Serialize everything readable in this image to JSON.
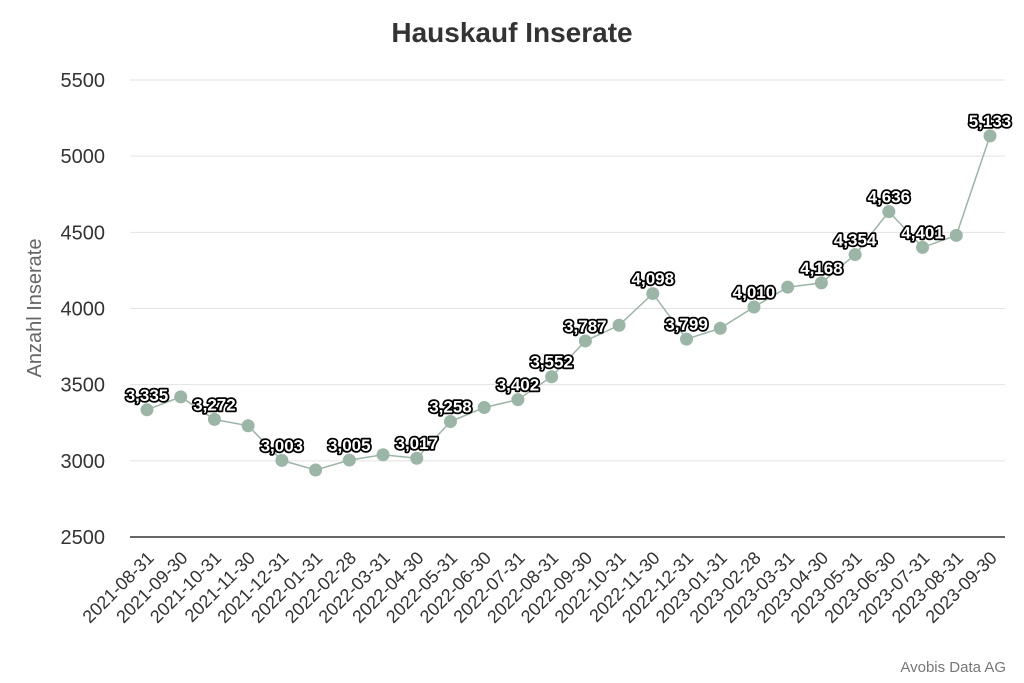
{
  "chart_data": {
    "type": "line",
    "title": "Hauskauf Inserate",
    "ylabel": "Anzahl Inserate",
    "xlabel": "",
    "ylim": [
      2500,
      5500
    ],
    "yticks": [
      2500,
      3000,
      3500,
      4000,
      4500,
      5000,
      5500
    ],
    "grid": true,
    "color": "#9bb5a6",
    "categories": [
      "2021-08-31",
      "2021-09-30",
      "2021-10-31",
      "2021-11-30",
      "2021-12-31",
      "2022-01-31",
      "2022-02-28",
      "2022-03-31",
      "2022-04-30",
      "2022-05-31",
      "2022-06-30",
      "2022-07-31",
      "2022-08-31",
      "2022-09-30",
      "2022-10-31",
      "2022-11-30",
      "2022-12-31",
      "2023-01-31",
      "2023-02-28",
      "2023-03-31",
      "2023-04-30",
      "2023-05-31",
      "2023-06-30",
      "2023-07-31",
      "2023-08-31",
      "2023-09-30"
    ],
    "values": [
      3335,
      3420,
      3272,
      3230,
      3003,
      2940,
      3005,
      3040,
      3017,
      3258,
      3350,
      3402,
      3552,
      3787,
      3890,
      4098,
      3799,
      3870,
      4010,
      4140,
      4168,
      4354,
      4636,
      4401,
      4480,
      5133
    ],
    "data_labels": [
      "3,335",
      "",
      "3,272",
      "",
      "3,003",
      "",
      "3,005",
      "",
      "3,017",
      "3,258",
      "",
      "3,402",
      "3,552",
      "3,787",
      "",
      "4,098",
      "3,799",
      "",
      "4,010",
      "",
      "4,168",
      "4,354",
      "4,636",
      "4,401",
      "",
      "5,133"
    ]
  },
  "credit": "Avobis Data AG"
}
